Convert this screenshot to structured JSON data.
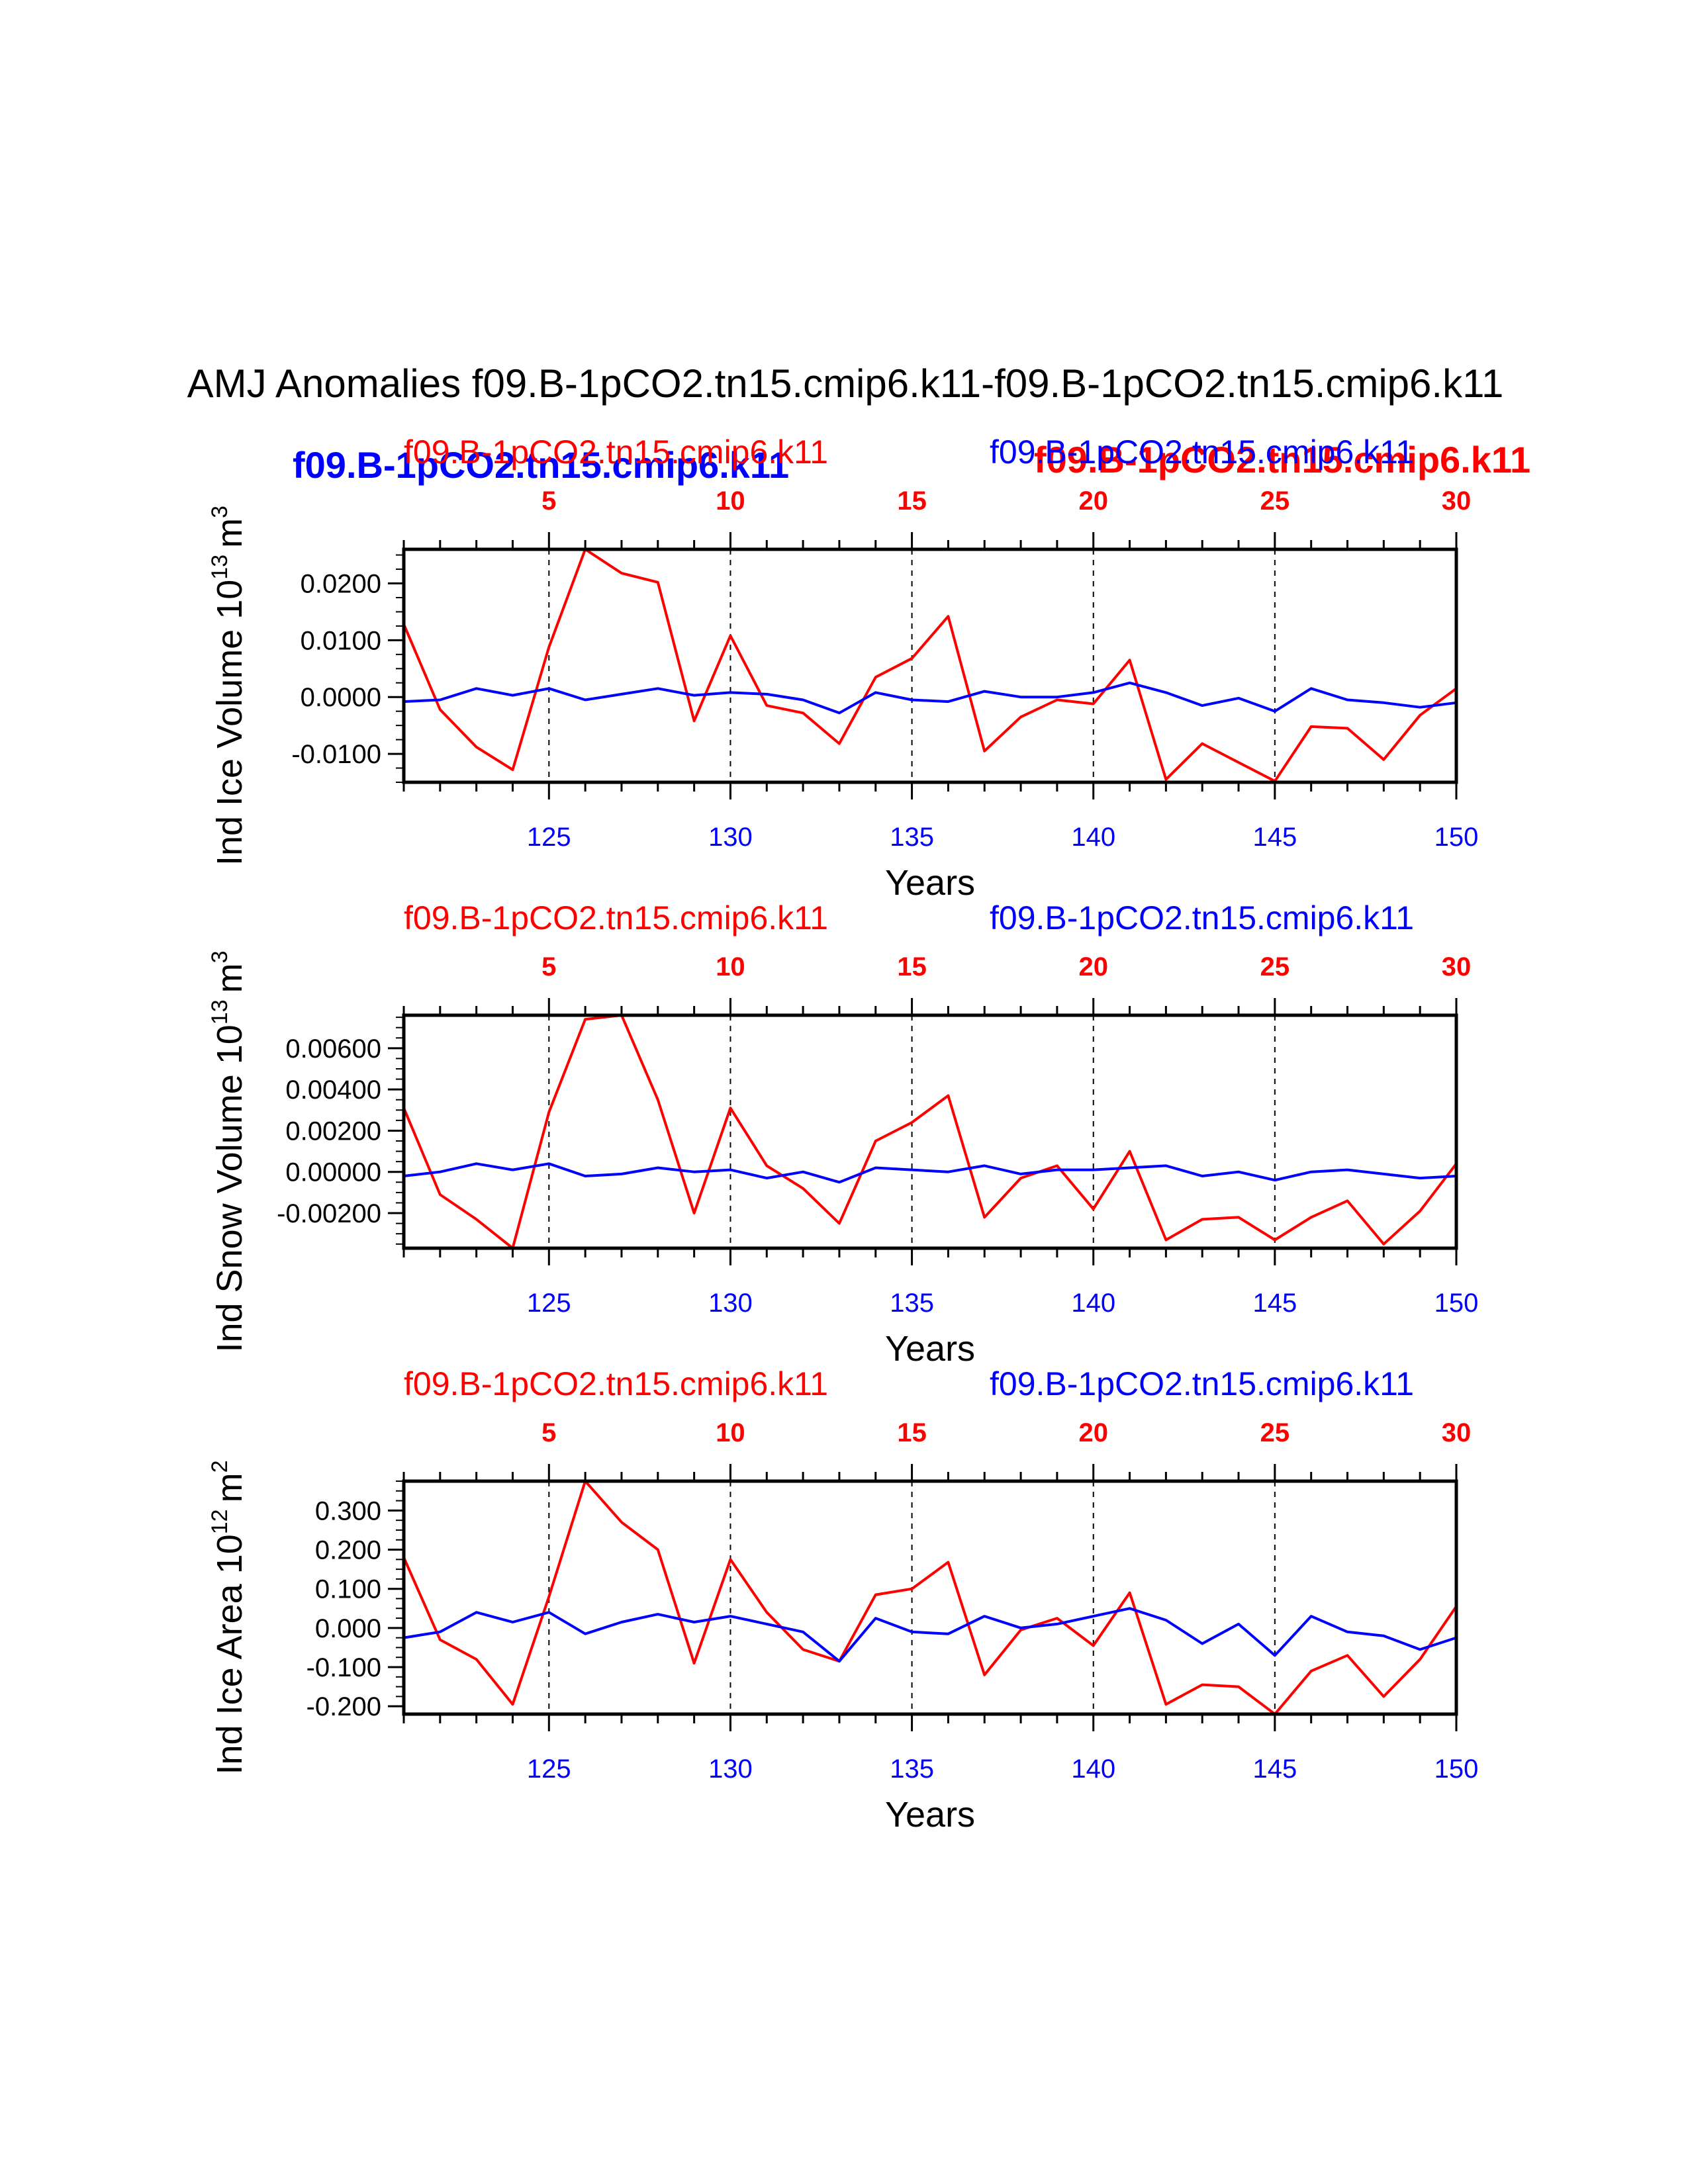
{
  "title": "AMJ Anomalies f09.B-1pCO2.tn15.cmip6.k11-f09.B-1pCO2.tn15.cmip6.k11",
  "legend": {
    "red_case": "f09.B-1pCO2.tn15.cmip6.k11",
    "blue_case": "f09.B-1pCO2.tn15.cmip6.k11",
    "red_color": "#ff0000",
    "blue_color": "#0000ff"
  },
  "chart_data": [
    {
      "type": "line",
      "case_left": "f09.B-1pCO2.tn15.cmip6.k11",
      "case_right": "f09.B-1pCO2.tn15.cmip6.k11",
      "overlay_left": "f09.B-1pCO2.tn15.cmip6.k11",
      "overlay_right": "f09.B-1pCO2.tn15.cmip6.k11",
      "ylabel": "Ind Ice Volume 10",
      "ylabel_exp": "13",
      "ylabel_unit": "m",
      "ylabel_unit_exp": "3",
      "xlabel": "Years",
      "x_bottom": [
        121,
        122,
        123,
        124,
        125,
        126,
        127,
        128,
        129,
        130,
        131,
        132,
        133,
        134,
        135,
        136,
        137,
        138,
        139,
        140,
        141,
        142,
        143,
        144,
        145,
        146,
        147,
        148,
        149,
        150
      ],
      "bottom_ticks": [
        "125",
        "130",
        "135",
        "140",
        "145",
        "150"
      ],
      "top_ticks": [
        "5",
        "10",
        "15",
        "20",
        "25",
        "30"
      ],
      "xlim_bottom": [
        121,
        150
      ],
      "ylim": [
        -0.015,
        0.026
      ],
      "yticks": [
        "0.0200",
        "0.0100",
        "0.0000",
        "-0.0100"
      ],
      "ytick_values": [
        0.02,
        0.01,
        0.0,
        -0.01
      ],
      "series": [
        {
          "name": "f09.B-1pCO2.tn15.cmip6.k11",
          "color": "#ff0000",
          "values": [
            0.0128,
            -0.0022,
            -0.0088,
            -0.0128,
            0.0088,
            0.026,
            0.0218,
            0.0202,
            -0.0042,
            0.0108,
            -0.0015,
            -0.0028,
            -0.0082,
            0.0035,
            0.0068,
            0.0142,
            -0.0095,
            -0.0035,
            -0.0005,
            -0.0012,
            0.0065,
            -0.0145,
            -0.0082,
            -0.0115,
            -0.0148,
            -0.0052,
            -0.0055,
            -0.011,
            -0.0032,
            0.0015
          ]
        },
        {
          "name": "f09.B-1pCO2.tn15.cmip6.k11",
          "color": "#0000ff",
          "values": [
            -0.0008,
            -0.0005,
            0.0015,
            0.0003,
            0.0015,
            -0.0005,
            0.0005,
            0.0015,
            0.0003,
            0.0008,
            0.0005,
            -0.0005,
            -0.0028,
            0.0008,
            -0.0005,
            -0.0008,
            0.001,
            0.0,
            0.0,
            0.0008,
            0.0025,
            0.0008,
            -0.0015,
            -0.0002,
            -0.0025,
            0.0015,
            -0.0005,
            -0.001,
            -0.0018,
            -0.001
          ]
        }
      ]
    },
    {
      "type": "line",
      "case_left": "f09.B-1pCO2.tn15.cmip6.k11",
      "case_right": "f09.B-1pCO2.tn15.cmip6.k11",
      "ylabel": "Ind Snow Volume 10",
      "ylabel_exp": "13",
      "ylabel_unit": "m",
      "ylabel_unit_exp": "3",
      "xlabel": "Years",
      "x_bottom": [
        121,
        122,
        123,
        124,
        125,
        126,
        127,
        128,
        129,
        130,
        131,
        132,
        133,
        134,
        135,
        136,
        137,
        138,
        139,
        140,
        141,
        142,
        143,
        144,
        145,
        146,
        147,
        148,
        149,
        150
      ],
      "bottom_ticks": [
        "125",
        "130",
        "135",
        "140",
        "145",
        "150"
      ],
      "top_ticks": [
        "5",
        "10",
        "15",
        "20",
        "25",
        "30"
      ],
      "xlim_bottom": [
        121,
        150
      ],
      "ylim": [
        -0.0037,
        0.0076
      ],
      "yticks": [
        "0.00600",
        "0.00400",
        "0.00200",
        "0.00000",
        "-0.00200"
      ],
      "ytick_values": [
        0.006,
        0.004,
        0.002,
        0.0,
        -0.002
      ],
      "series": [
        {
          "name": "f09.B-1pCO2.tn15.cmip6.k11",
          "color": "#ff0000",
          "values": [
            0.0031,
            -0.0011,
            -0.0023,
            -0.0037,
            0.0029,
            0.0074,
            0.0076,
            0.0035,
            -0.002,
            0.0031,
            0.0003,
            -0.0008,
            -0.0025,
            0.0015,
            0.0024,
            0.0037,
            -0.0022,
            -0.0003,
            0.0003,
            -0.0018,
            0.001,
            -0.0033,
            -0.0023,
            -0.0022,
            -0.0033,
            -0.0022,
            -0.0014,
            -0.0035,
            -0.0019,
            0.0004
          ]
        },
        {
          "name": "f09.B-1pCO2.tn15.cmip6.k11",
          "color": "#0000ff",
          "values": [
            -0.0002,
            0.0,
            0.0004,
            0.0001,
            0.0004,
            -0.0002,
            -0.0001,
            0.0002,
            0.0,
            0.0001,
            -0.0003,
            0.0,
            -0.0005,
            0.0002,
            0.0001,
            0.0,
            0.0003,
            -0.0001,
            0.0001,
            0.0001,
            0.0002,
            0.0003,
            -0.0002,
            0.0,
            -0.0004,
            0.0,
            0.0001,
            -0.0001,
            -0.0003,
            -0.0002
          ]
        }
      ]
    },
    {
      "type": "line",
      "case_left": "f09.B-1pCO2.tn15.cmip6.k11",
      "case_right": "f09.B-1pCO2.tn15.cmip6.k11",
      "ylabel": "Ind Ice Area 10",
      "ylabel_exp": "12",
      "ylabel_unit": "m",
      "ylabel_unit_exp": "2",
      "xlabel": "Years",
      "x_bottom": [
        121,
        122,
        123,
        124,
        125,
        126,
        127,
        128,
        129,
        130,
        131,
        132,
        133,
        134,
        135,
        136,
        137,
        138,
        139,
        140,
        141,
        142,
        143,
        144,
        145,
        146,
        147,
        148,
        149,
        150
      ],
      "bottom_ticks": [
        "125",
        "130",
        "135",
        "140",
        "145",
        "150"
      ],
      "top_ticks": [
        "5",
        "10",
        "15",
        "20",
        "25",
        "30"
      ],
      "xlim_bottom": [
        121,
        150
      ],
      "ylim": [
        -0.22,
        0.375
      ],
      "yticks": [
        "0.300",
        "0.200",
        "0.100",
        "0.000",
        "-0.100",
        "-0.200"
      ],
      "ytick_values": [
        0.3,
        0.2,
        0.1,
        0.0,
        -0.1,
        -0.2
      ],
      "series": [
        {
          "name": "f09.B-1pCO2.tn15.cmip6.k11",
          "color": "#ff0000",
          "values": [
            0.18,
            -0.03,
            -0.08,
            -0.195,
            0.08,
            0.375,
            0.27,
            0.2,
            -0.09,
            0.175,
            0.04,
            -0.055,
            -0.085,
            0.085,
            0.1,
            0.168,
            -0.12,
            -0.005,
            0.025,
            -0.045,
            0.09,
            -0.195,
            -0.145,
            -0.15,
            -0.22,
            -0.11,
            -0.07,
            -0.175,
            -0.08,
            0.055
          ]
        },
        {
          "name": "f09.B-1pCO2.tn15.cmip6.k11",
          "color": "#0000ff",
          "values": [
            -0.025,
            -0.01,
            0.04,
            0.015,
            0.04,
            -0.015,
            0.015,
            0.035,
            0.015,
            0.03,
            0.01,
            -0.01,
            -0.085,
            0.025,
            -0.01,
            -0.015,
            0.03,
            0.0,
            0.01,
            0.03,
            0.05,
            0.02,
            -0.04,
            0.01,
            -0.07,
            0.03,
            -0.01,
            -0.02,
            -0.055,
            -0.025
          ]
        }
      ]
    }
  ]
}
